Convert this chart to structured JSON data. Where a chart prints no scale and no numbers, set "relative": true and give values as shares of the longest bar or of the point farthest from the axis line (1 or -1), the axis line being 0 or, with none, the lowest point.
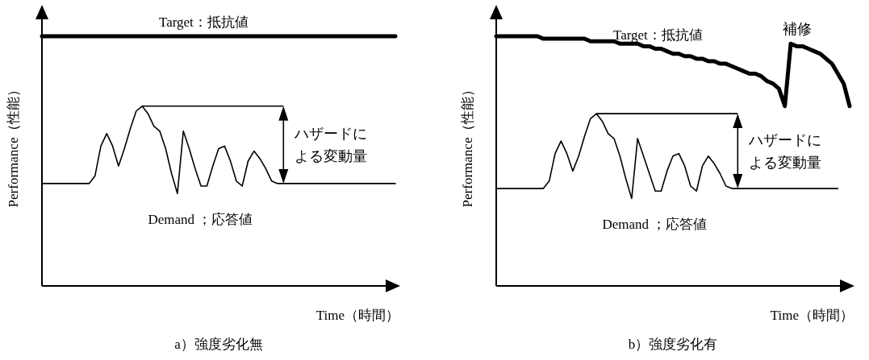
{
  "chart_data": [
    {
      "type": "line",
      "title": "a）強度劣化無",
      "xlabel": "Time（時間）",
      "ylabel": "Performance（性能）",
      "relative": true,
      "categories": [
        null,
        null,
        null,
        null,
        null,
        null,
        null,
        null,
        null,
        null,
        null,
        null,
        null,
        null,
        null,
        null,
        null,
        null,
        null,
        null,
        null,
        null,
        null,
        null,
        null,
        null,
        null,
        null,
        null,
        null,
        null,
        null,
        null,
        null,
        null,
        null,
        null,
        null,
        null,
        null,
        null,
        null,
        null,
        null,
        null,
        null,
        null,
        null,
        null,
        null,
        null,
        null,
        null,
        null,
        null,
        null,
        null,
        null,
        null,
        null,
        null
      ],
      "series": [
        {
          "name": "Target：抵抗値",
          "color": "#000000",
          "values": [
            1,
            1,
            1,
            1,
            1,
            1,
            1,
            1,
            1,
            1,
            1,
            1,
            1,
            1,
            1,
            1,
            1,
            1,
            1,
            1,
            1,
            1,
            1,
            1,
            1,
            1,
            1,
            1,
            1,
            1,
            1,
            1,
            1,
            1,
            1,
            1,
            1,
            1,
            1,
            1,
            1,
            1,
            1,
            1,
            1,
            1,
            1,
            1,
            1,
            1,
            1,
            1,
            1,
            1,
            1,
            1,
            1,
            1,
            1,
            1,
            1
          ]
        },
        {
          "name": "Demand ；応答値",
          "color": "#000000",
          "values": [
            0.41,
            0.41,
            0.41,
            0.41,
            0.41,
            0.41,
            0.41,
            0.41,
            0.41,
            0.44,
            0.56,
            0.61,
            0.56,
            0.48,
            0.55,
            0.63,
            0.7,
            0.72,
            0.69,
            0.64,
            0.62,
            0.55,
            0.45,
            0.37,
            0.62,
            0.55,
            0.47,
            0.4,
            0.4,
            0.48,
            0.55,
            0.56,
            0.5,
            0.42,
            0.4,
            0.5,
            0.54,
            0.51,
            0.47,
            0.42,
            0.41,
            0.41,
            0.41,
            0.41,
            0.41,
            0.41,
            0.41,
            0.41,
            0.41,
            0.41,
            0.41,
            0.41,
            0.41,
            0.41,
            0.41,
            0.41,
            0.41,
            0.41,
            0.41,
            0.41,
            0.41
          ]
        }
      ],
      "annotations": [
        "ハザードに",
        "よる変動量"
      ]
    },
    {
      "type": "line",
      "title": "b）強度劣化有",
      "xlabel": "Time（時間）",
      "ylabel": "Performance（性能）",
      "relative": true,
      "categories": [
        null,
        null,
        null,
        null,
        null,
        null,
        null,
        null,
        null,
        null,
        null,
        null,
        null,
        null,
        null,
        null,
        null,
        null,
        null,
        null,
        null,
        null,
        null,
        null,
        null,
        null,
        null,
        null,
        null,
        null,
        null,
        null,
        null,
        null,
        null,
        null,
        null,
        null,
        null,
        null,
        null,
        null,
        null,
        null,
        null,
        null,
        null,
        null,
        null,
        null,
        null,
        null,
        null,
        null,
        null,
        null,
        null,
        null,
        null,
        null,
        null
      ],
      "series": [
        {
          "name": "Target：抵抗値",
          "color": "#000000",
          "values": [
            1,
            1,
            1,
            1,
            1,
            1,
            1,
            1,
            0.99,
            0.99,
            0.99,
            0.99,
            0.99,
            0.99,
            0.99,
            0.99,
            0.98,
            0.98,
            0.98,
            0.98,
            0.98,
            0.97,
            0.97,
            0.97,
            0.97,
            0.96,
            0.96,
            0.95,
            0.95,
            0.94,
            0.93,
            0.93,
            0.92,
            0.92,
            0.91,
            0.91,
            0.9,
            0.9,
            0.89,
            0.89,
            0.88,
            0.87,
            0.86,
            0.85,
            0.85,
            0.84,
            0.82,
            0.81,
            0.79,
            0.72,
            0.97,
            0.96,
            0.96,
            0.95,
            0.94,
            0.93,
            0.91,
            0.89,
            0.85,
            0.81,
            0.72
          ]
        },
        {
          "name": "Demand ；応答値",
          "color": "#000000",
          "values": [
            0.39,
            0.39,
            0.39,
            0.39,
            0.39,
            0.39,
            0.39,
            0.39,
            0.39,
            0.42,
            0.53,
            0.58,
            0.53,
            0.46,
            0.52,
            0.6,
            0.67,
            0.69,
            0.66,
            0.61,
            0.59,
            0.52,
            0.43,
            0.35,
            0.59,
            0.52,
            0.45,
            0.38,
            0.38,
            0.46,
            0.52,
            0.53,
            0.48,
            0.4,
            0.38,
            0.48,
            0.52,
            0.49,
            0.45,
            0.4,
            0.39,
            0.39,
            0.39,
            0.39,
            0.39,
            0.39,
            0.39,
            0.39,
            0.39,
            0.39,
            0.39,
            0.39,
            0.39,
            0.39,
            0.39,
            0.39,
            0.39,
            0.39,
            0.39,
            null,
            null
          ]
        }
      ],
      "annotations": [
        "ハザードに",
        "よる変動量",
        "補修"
      ]
    }
  ]
}
